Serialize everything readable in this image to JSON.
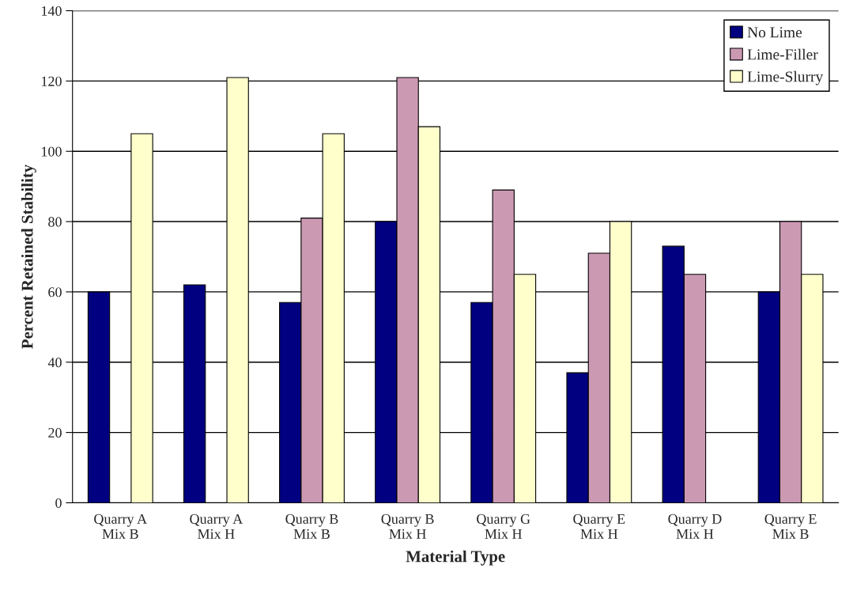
{
  "chart_data": {
    "type": "bar",
    "xlabel": "Material Type",
    "ylabel": "Percent Retained Stability",
    "categories": [
      "Quarry A\nMix B",
      "Quarry A\nMix H",
      "Quarry B\nMix B",
      "Quarry B\nMix H",
      "Quarry G\nMix H",
      "Quarry E\nMix H",
      "Quarry D\nMix H",
      "Quarry E\nMix B"
    ],
    "series": [
      {
        "name": "No Lime",
        "color": "#000080",
        "values": [
          60,
          62,
          57,
          80,
          57,
          37,
          73,
          60
        ]
      },
      {
        "name": "Lime-Filler",
        "color": "#cc99b3",
        "values": [
          null,
          null,
          81,
          121,
          89,
          71,
          65,
          80
        ]
      },
      {
        "name": "Lime-Slurry",
        "color": "#ffffcc",
        "values": [
          105,
          121,
          105,
          107,
          65,
          80,
          null,
          65
        ]
      }
    ],
    "ylim": [
      0,
      140
    ],
    "yticks": [
      0,
      20,
      40,
      60,
      80,
      100,
      120,
      140
    ],
    "grid": "y",
    "legend": "top right"
  }
}
